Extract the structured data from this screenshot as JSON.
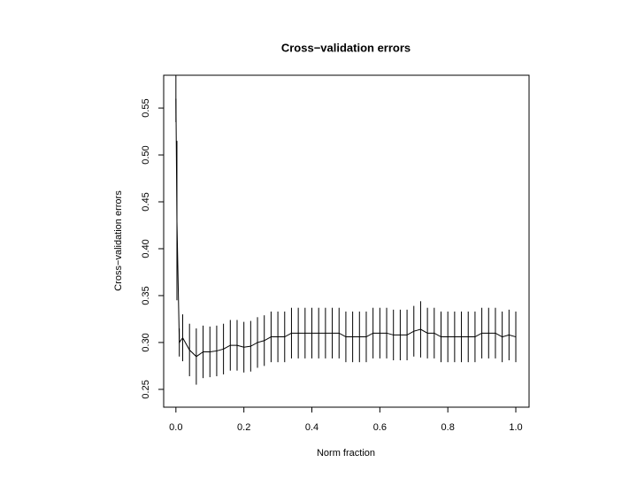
{
  "chart_data": {
    "type": "errorbar-line",
    "title": "Cross−validation errors",
    "x_label": "Norm fraction",
    "y_label": "Cross−validation errors",
    "xlim": [
      -0.036,
      1.039
    ],
    "ylim": [
      0.231,
      0.585
    ],
    "xticks": [
      {
        "value": 0,
        "label": "0.0"
      },
      0.2,
      0.4,
      0.6,
      0.8,
      {
        "value": 1,
        "label": "1.0"
      }
    ],
    "yticks": [
      0.25,
      {
        "value": 0.3,
        "label": "0.30"
      },
      0.35,
      {
        "value": 0.4,
        "label": "0.40"
      },
      0.45,
      {
        "value": 0.5,
        "label": "0.50"
      },
      0.55
    ],
    "color": "#000000",
    "series": [
      {
        "x": [
          0,
          0.003,
          0.01,
          0.02,
          0.04,
          0.06,
          0.08,
          0.1,
          0.12,
          0.14,
          0.16,
          0.18,
          0.2,
          0.22,
          0.24,
          0.26,
          0.28,
          0.3,
          0.32,
          0.34,
          0.36,
          0.38,
          0.4,
          0.42,
          0.44,
          0.46,
          0.48,
          0.5,
          0.52,
          0.54,
          0.56,
          0.58,
          0.6,
          0.62,
          0.64,
          0.66,
          0.68,
          0.7,
          0.72,
          0.74,
          0.76,
          0.78,
          0.8,
          0.82,
          0.84,
          0.86,
          0.88,
          0.9,
          0.92,
          0.94,
          0.96,
          0.98,
          1
        ],
        "values": [
          0.56,
          0.43,
          0.3,
          0.305,
          0.292,
          0.285,
          0.29,
          0.29,
          0.291,
          0.293,
          0.297,
          0.297,
          0.295,
          0.296,
          0.3,
          0.302,
          0.306,
          0.306,
          0.306,
          0.31,
          0.31,
          0.31,
          0.31,
          0.31,
          0.31,
          0.31,
          0.31,
          0.306,
          0.306,
          0.306,
          0.306,
          0.31,
          0.31,
          0.31,
          0.308,
          0.308,
          0.308,
          0.312,
          0.314,
          0.31,
          0.31,
          0.306,
          0.306,
          0.306,
          0.306,
          0.306,
          0.306,
          0.31,
          0.31,
          0.31,
          0.306,
          0.308,
          0.306
        ],
        "errors": [
          0.025,
          0.085,
          0.015,
          0.025,
          0.028,
          0.03,
          0.028,
          0.027,
          0.027,
          0.027,
          0.027,
          0.027,
          0.027,
          0.027,
          0.027,
          0.027,
          0.027,
          0.027,
          0.027,
          0.027,
          0.027,
          0.027,
          0.027,
          0.027,
          0.027,
          0.027,
          0.027,
          0.027,
          0.027,
          0.027,
          0.027,
          0.027,
          0.027,
          0.027,
          0.027,
          0.027,
          0.027,
          0.027,
          0.03,
          0.027,
          0.027,
          0.027,
          0.027,
          0.027,
          0.027,
          0.027,
          0.027,
          0.027,
          0.027,
          0.027,
          0.027,
          0.027,
          0.027
        ]
      }
    ]
  }
}
